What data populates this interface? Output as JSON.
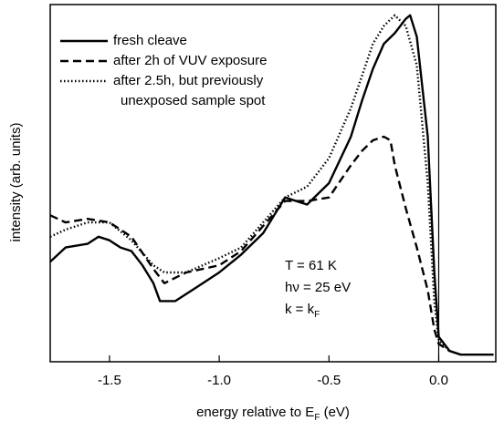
{
  "chart_data": {
    "type": "line",
    "xlabel": [
      "energy relative to E",
      "F",
      " (eV)"
    ],
    "ylabel": "intensity (arb. units)",
    "xlim": [
      -1.77,
      0.26
    ],
    "ylim": [
      0,
      100
    ],
    "xticks": [
      -1.5,
      {
        "value": -1,
        "label": "-1.0"
      },
      -0.5,
      {
        "value": 0,
        "label": "0.0"
      }
    ],
    "vline": 0,
    "legend": "upper left",
    "color": "#000000",
    "annotations": [
      {
        "text": "T = 61 K"
      },
      {
        "text": "hν = 25 eV"
      },
      {
        "text": "k = k",
        "sub": "F"
      }
    ],
    "series": [
      {
        "name": [
          "fresh cleave"
        ],
        "dash": "solid",
        "x": [
          -1.77,
          -1.7,
          -1.6,
          -1.55,
          -1.5,
          -1.45,
          -1.4,
          -1.35,
          -1.3,
          -1.27,
          -1.2,
          -1.1,
          -1.0,
          -0.9,
          -0.8,
          -0.7,
          -0.6,
          -0.5,
          -0.4,
          -0.35,
          -0.3,
          -0.25,
          -0.2,
          -0.15,
          -0.13,
          -0.1,
          -0.05,
          -0.02,
          0.0,
          0.05,
          0.1,
          0.2,
          0.25
        ],
        "values": [
          28,
          32,
          33,
          35,
          34,
          32,
          31,
          27,
          22,
          17,
          17,
          21,
          25,
          30,
          36,
          46,
          44,
          50,
          63,
          73,
          82,
          89,
          92,
          96,
          97,
          91,
          63,
          25,
          7,
          3,
          2,
          2,
          2
        ]
      },
      {
        "name": [
          "after 2h of VUV exposure"
        ],
        "dash": "dashed",
        "x": [
          -1.77,
          -1.7,
          -1.6,
          -1.5,
          -1.4,
          -1.3,
          -1.25,
          -1.15,
          -1.0,
          -0.9,
          -0.8,
          -0.7,
          -0.6,
          -0.5,
          -0.4,
          -0.35,
          -0.3,
          -0.25,
          -0.22,
          -0.2,
          -0.15,
          -0.1,
          -0.05,
          -0.02,
          0.0,
          0.05
        ],
        "values": [
          41,
          39,
          40,
          39,
          35,
          26,
          22,
          25,
          27,
          31,
          38,
          45,
          45,
          46,
          55,
          59,
          62,
          63,
          62,
          55,
          43,
          32,
          20,
          9,
          5,
          3
        ]
      },
      {
        "name": [
          "after 2.5h, but previously",
          "unexposed sample spot"
        ],
        "dash": "dotted",
        "x": [
          -1.77,
          -1.7,
          -1.6,
          -1.5,
          -1.4,
          -1.3,
          -1.25,
          -1.15,
          -1.0,
          -0.9,
          -0.8,
          -0.7,
          -0.6,
          -0.5,
          -0.4,
          -0.35,
          -0.3,
          -0.25,
          -0.2,
          -0.15,
          -0.1,
          -0.05,
          -0.02,
          0.0,
          0.05
        ],
        "values": [
          35,
          37,
          39,
          39,
          34,
          27,
          25,
          25,
          29,
          32,
          39,
          46,
          49,
          57,
          71,
          80,
          89,
          94,
          97,
          94,
          83,
          50,
          17,
          6,
          3
        ]
      }
    ]
  }
}
